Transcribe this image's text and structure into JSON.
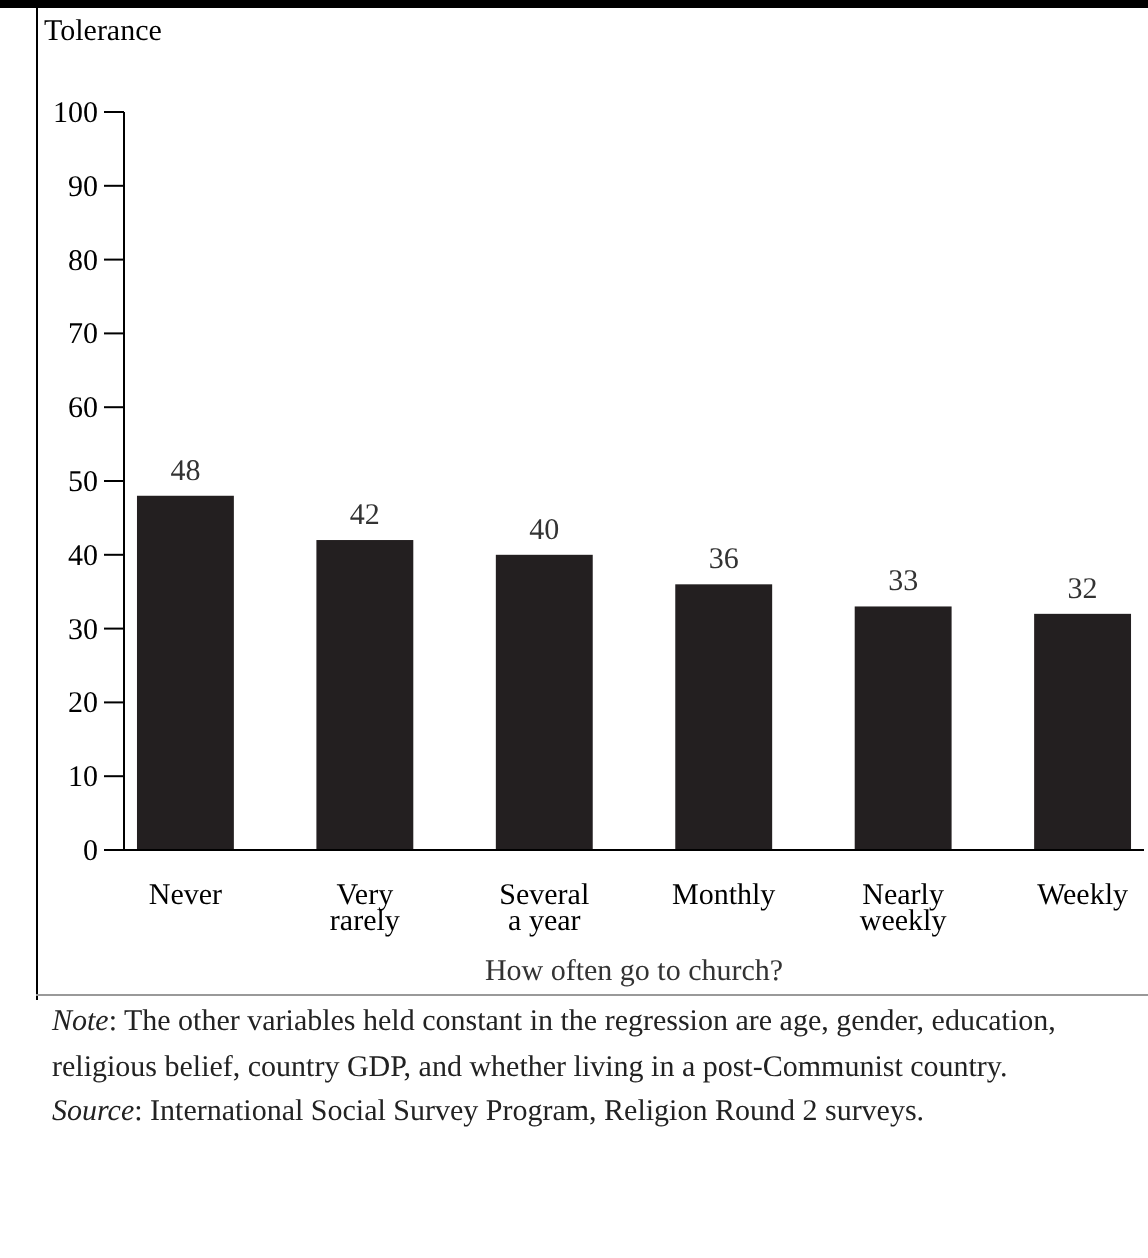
{
  "chart_data": {
    "type": "bar",
    "ylabel": "Tolerance",
    "xlabel": "How often go to church?",
    "categories": [
      "Never",
      "Very\nrarely",
      "Several\na year",
      "Monthly",
      "Nearly\nweekly",
      "Weekly"
    ],
    "values": [
      48,
      42,
      40,
      36,
      33,
      32
    ],
    "color": "#231f20",
    "ylim": [
      0,
      100
    ],
    "yticks": [
      0,
      10,
      20,
      30,
      40,
      50,
      60,
      70,
      80,
      90,
      100
    ],
    "grid": false,
    "data_labels": true,
    "annotations": [
      "Note: The other variables held constant in the regression are age, gender, education, religious belief, country GDP, and whether living in a post-Communist country.",
      "Source: International Social Survey Program, Religion Round 2 surveys."
    ]
  }
}
